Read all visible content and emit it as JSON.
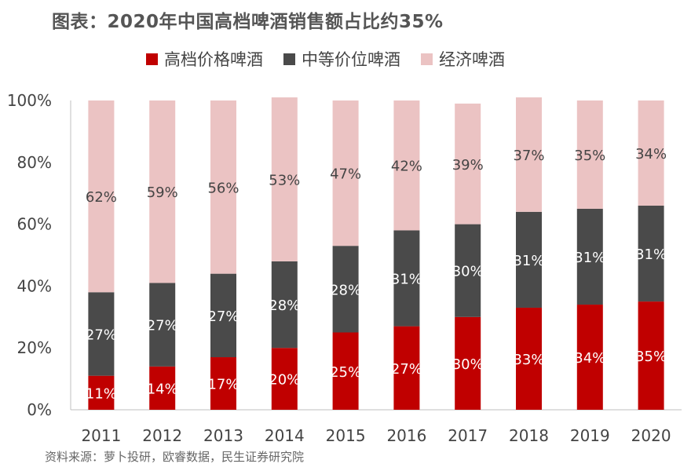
{
  "title": "图表：2020年中国高档啤酒销售额占比约35%",
  "source": "资料来源：萝卜投研，欧睿数据，民生证券研究院",
  "chart_data": {
    "type": "bar",
    "stacked": true,
    "normalized": true,
    "categories": [
      "2011",
      "2012",
      "2013",
      "2014",
      "2015",
      "2016",
      "2017",
      "2018",
      "2019",
      "2020"
    ],
    "series": [
      {
        "name": "高档价格啤酒",
        "color": "#c00000",
        "values": [
          11,
          14,
          17,
          20,
          25,
          27,
          30,
          33,
          34,
          35
        ],
        "labels": [
          "11%",
          "14%",
          "17%",
          "20%",
          "25%",
          "27%",
          "30%",
          "33%",
          "34%",
          "35%"
        ]
      },
      {
        "name": "中等价位啤酒",
        "color": "#4a4a4a",
        "values": [
          27,
          27,
          27,
          28,
          28,
          31,
          30,
          31,
          31,
          31
        ],
        "labels": [
          "27%",
          "27%",
          "27%",
          "28%",
          "28%",
          "31%",
          "30%",
          "31%",
          "31%",
          "31%"
        ]
      },
      {
        "name": "经济啤酒",
        "color": "#ebc3c3",
        "values": [
          62,
          59,
          56,
          53,
          47,
          42,
          39,
          37,
          35,
          34
        ],
        "labels": [
          "62%",
          "59%",
          "56%",
          "53%",
          "47%",
          "42%",
          "39%",
          "37%",
          "35%",
          "34%"
        ]
      }
    ],
    "ylim": [
      0,
      100
    ],
    "yticks": [
      "0%",
      "20%",
      "40%",
      "60%",
      "80%",
      "100%"
    ],
    "legend": "top",
    "grid": false
  }
}
